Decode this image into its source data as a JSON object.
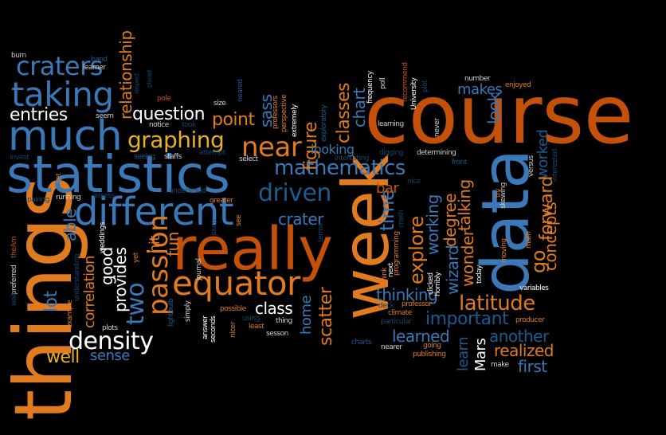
{
  "palette": {
    "background": "#000000",
    "orange": "#e07b20",
    "dark_orange": "#c5500a",
    "yellow": "#e8b020",
    "blue": "#3a78b8",
    "light_blue": "#6d99c6",
    "dark_blue": "#1d5a8e",
    "white": "#ffffff"
  },
  "words": {
    "things": "things",
    "course": "course",
    "statistics": "statistics",
    "really": "really",
    "week": "week",
    "data": "data",
    "different": "different",
    "much": "much",
    "taking": "taking",
    "craters": "craters",
    "equator": "equator",
    "graphing": "graphing",
    "mathematics": "mathematics",
    "density": "density",
    "latitude": "latitude",
    "near": "near",
    "entries": "entries",
    "question": "question",
    "driven": "driven",
    "passion": "passion",
    "important": "important",
    "explore": "explore",
    "time": "time",
    "crater": "crater",
    "point": "point",
    "figure": "figure",
    "sass": "sass",
    "classes": "classes",
    "chart": "chart",
    "relationship": "relationship",
    "look": "look",
    "makes": "makes",
    "talking": "talking",
    "degree": "degree",
    "wizard": "wizard",
    "wonder": "wonder",
    "working": "working",
    "worked": "worked",
    "forward": "forward",
    "concepts": "concepts",
    "go": "go",
    "learn": "learn",
    "Mars": "Mars",
    "first": "first",
    "another": "another",
    "realized": "realized",
    "learned": "learned",
    "thinking": "thinking",
    "scatter": "scatter",
    "home": "home",
    "class": "class",
    "fun": "fun",
    "two": "two",
    "hit": "hit",
    "provides": "provides",
    "good": "good",
    "correlation": "correlation",
    "lot": "lot",
    "able": "able",
    "well": "well",
    "sense": "sense",
    "looking": "looking",
    "bar": "bar",
    "burn": "burn",
    "band": "band",
    "learner": "learner",
    "seem": "seem",
    "respect": "respect",
    "planet": "planet",
    "pole": "pole",
    "size": "size",
    "neared": "neared",
    "notice": "notice",
    "took": "took",
    "professors": "professors",
    "perspective": "perspective",
    "extremely": "extremely",
    "exploratory": "exploratory",
    "frequency": "frequency",
    "poll": "poll",
    "recommend": "recommend",
    "University": "University",
    "plot": "plot",
    "number": "number",
    "enjoyed": "enjoyed",
    "learning": "learning",
    "never": "never",
    "seeing": "seeing",
    "staffs": "staffs",
    "attempt": "attempt",
    "select": "select",
    "invest": "invest",
    "interesting": "interesting",
    "digging": "digging",
    "determining": "determining",
    "front": "front",
    "versus": "versus",
    "interested": "interested",
    "nice": "nice",
    "skewing": "skewing",
    "try": "try",
    "set": "set",
    "running": "running",
    "assess": "assess",
    "understood": "understood",
    "greater": "greater",
    "pairing": "pairing",
    "theAm": "theAm",
    "preferred": "preferred",
    "walk": "walk",
    "understanding": "understanding",
    "example": "example",
    "plots": "plots",
    "yet": "yet",
    "weddings": "weddings",
    "lightbulb": "lightbulb",
    "simply": "simply",
    "journal": "journal",
    "answer": "answer",
    "seconds": "seconds",
    "possible": "possible",
    "nicer": "nicer",
    "using": "using",
    "least": "least",
    "see": "see",
    "thing": "thing",
    "sesson": "sesson",
    "think": "think",
    "next": "next",
    "programming": "programming",
    "clicked": "clicked",
    "horribly": "horribly",
    "moving": "moving",
    "math": "math",
    "today": "today",
    "variables": "variables",
    "deck": "deck",
    "professor": "professor",
    "climate": "climate",
    "particular": "particular",
    "producer": "producer",
    "charts": "charts",
    "nearer": "nearer",
    "going": "going",
    "publishing": "publishing",
    "make": "make",
    "crash": "crash",
    "terms": "terms",
    "journ": "journ"
  }
}
